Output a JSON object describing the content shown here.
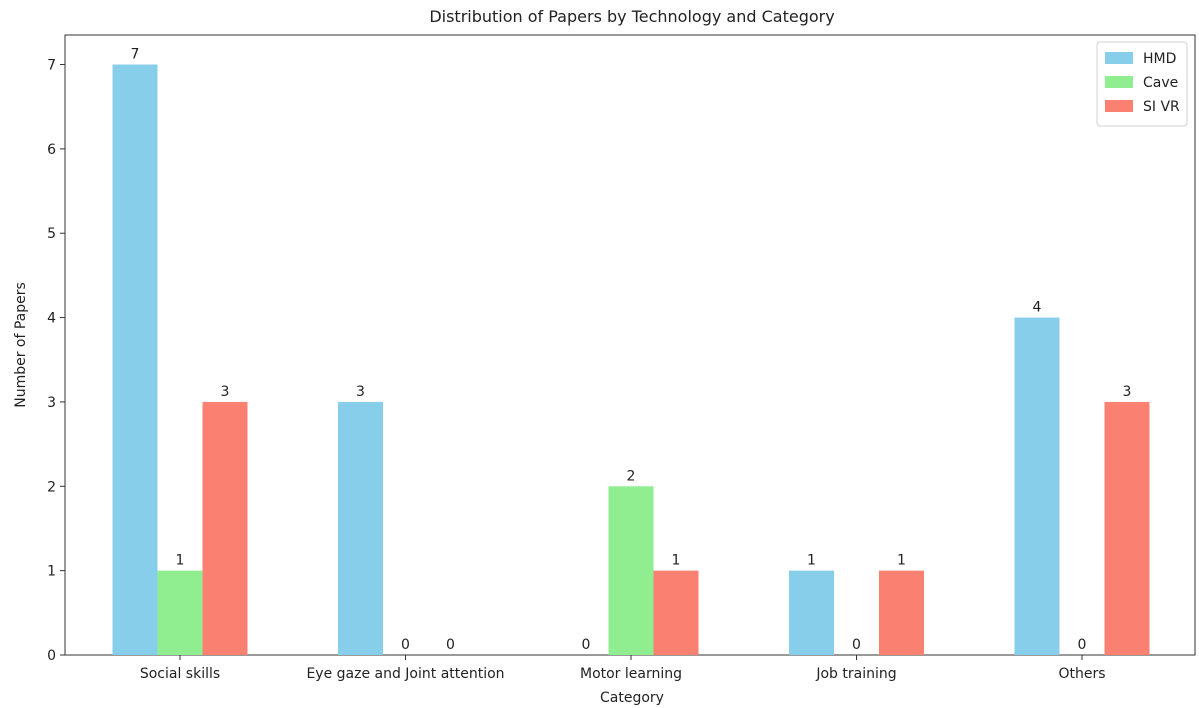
{
  "chart_data": {
    "type": "bar",
    "title": "Distribution of Papers by Technology and Category",
    "xlabel": "Category",
    "ylabel": "Number of Papers",
    "categories": [
      "Social skills",
      "Eye gaze and Joint attention",
      "Motor learning",
      "Job training",
      "Others"
    ],
    "series": [
      {
        "name": "HMD",
        "color": "#87CEEB",
        "values": [
          7,
          3,
          0,
          1,
          4
        ]
      },
      {
        "name": "Cave",
        "color": "#90EE90",
        "values": [
          1,
          0,
          2,
          0,
          0
        ]
      },
      {
        "name": "SI VR",
        "color": "#FA8072",
        "values": [
          3,
          0,
          1,
          1,
          3
        ]
      }
    ],
    "ylim": [
      0,
      7.35
    ],
    "yticks": [
      0,
      1,
      2,
      3,
      4,
      5,
      6,
      7
    ],
    "grid": false,
    "legend_position": "top-right"
  }
}
